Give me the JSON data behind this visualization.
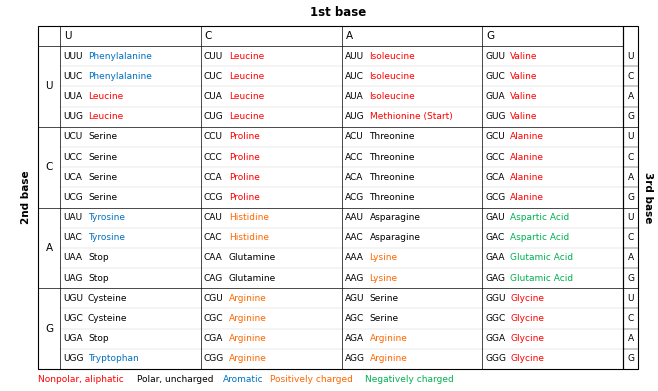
{
  "title": "1st base",
  "side_label": "2nd base",
  "right_label": "3rd base",
  "first_bases": [
    "U",
    "C",
    "A",
    "G"
  ],
  "second_bases": [
    "U",
    "C",
    "A",
    "G"
  ],
  "third_bases": [
    "U",
    "C",
    "A",
    "G"
  ],
  "legend": [
    {
      "text": "Nonpolar, aliphatic",
      "color": "#ff0000"
    },
    {
      "text": "Polar, uncharged",
      "color": "#000000"
    },
    {
      "text": "Aromatic",
      "color": "#0070c0"
    },
    {
      "text": "Positively charged",
      "color": "#ff6600"
    },
    {
      "text": "Negatively charged",
      "color": "#00b050"
    }
  ],
  "table": {
    "UU": [
      {
        "codon": "UUU",
        "aa": "Phenylalanine",
        "color": "#0070c0"
      },
      {
        "codon": "UUC",
        "aa": "Phenylalanine",
        "color": "#0070c0"
      },
      {
        "codon": "UUA",
        "aa": "Leucine",
        "color": "#ff0000"
      },
      {
        "codon": "UUG",
        "aa": "Leucine",
        "color": "#ff0000"
      }
    ],
    "UC": [
      {
        "codon": "UCU",
        "aa": "Serine",
        "color": "#000000"
      },
      {
        "codon": "UCC",
        "aa": "Serine",
        "color": "#000000"
      },
      {
        "codon": "UCA",
        "aa": "Serine",
        "color": "#000000"
      },
      {
        "codon": "UCG",
        "aa": "Serine",
        "color": "#000000"
      }
    ],
    "UA": [
      {
        "codon": "UAU",
        "aa": "Tyrosine",
        "color": "#0070c0"
      },
      {
        "codon": "UAC",
        "aa": "Tyrosine",
        "color": "#0070c0"
      },
      {
        "codon": "UAA",
        "aa": "Stop",
        "color": "#000000"
      },
      {
        "codon": "UAG",
        "aa": "Stop",
        "color": "#000000"
      }
    ],
    "UG": [
      {
        "codon": "UGU",
        "aa": "Cysteine",
        "color": "#000000"
      },
      {
        "codon": "UGC",
        "aa": "Cysteine",
        "color": "#000000"
      },
      {
        "codon": "UGA",
        "aa": "Stop",
        "color": "#000000"
      },
      {
        "codon": "UGG",
        "aa": "Tryptophan",
        "color": "#0070c0"
      }
    ],
    "CU": [
      {
        "codon": "CUU",
        "aa": "Leucine",
        "color": "#ff0000"
      },
      {
        "codon": "CUC",
        "aa": "Leucine",
        "color": "#ff0000"
      },
      {
        "codon": "CUA",
        "aa": "Leucine",
        "color": "#ff0000"
      },
      {
        "codon": "CUG",
        "aa": "Leucine",
        "color": "#ff0000"
      }
    ],
    "CC": [
      {
        "codon": "CCU",
        "aa": "Proline",
        "color": "#ff0000"
      },
      {
        "codon": "CCC",
        "aa": "Proline",
        "color": "#ff0000"
      },
      {
        "codon": "CCA",
        "aa": "Proline",
        "color": "#ff0000"
      },
      {
        "codon": "CCG",
        "aa": "Proline",
        "color": "#ff0000"
      }
    ],
    "CA": [
      {
        "codon": "CAU",
        "aa": "Histidine",
        "color": "#ff6600"
      },
      {
        "codon": "CAC",
        "aa": "Histidine",
        "color": "#ff6600"
      },
      {
        "codon": "CAA",
        "aa": "Glutamine",
        "color": "#000000"
      },
      {
        "codon": "CAG",
        "aa": "Glutamine",
        "color": "#000000"
      }
    ],
    "CG": [
      {
        "codon": "CGU",
        "aa": "Arginine",
        "color": "#ff6600"
      },
      {
        "codon": "CGC",
        "aa": "Arginine",
        "color": "#ff6600"
      },
      {
        "codon": "CGA",
        "aa": "Arginine",
        "color": "#ff6600"
      },
      {
        "codon": "CGG",
        "aa": "Arginine",
        "color": "#ff6600"
      }
    ],
    "AU": [
      {
        "codon": "AUU",
        "aa": "Isoleucine",
        "color": "#ff0000"
      },
      {
        "codon": "AUC",
        "aa": "Isoleucine",
        "color": "#ff0000"
      },
      {
        "codon": "AUA",
        "aa": "Isoleucine",
        "color": "#ff0000"
      },
      {
        "codon": "AUG",
        "aa": "Methionine (Start)",
        "color": "#ff0000"
      }
    ],
    "AC": [
      {
        "codon": "ACU",
        "aa": "Threonine",
        "color": "#000000"
      },
      {
        "codon": "ACC",
        "aa": "Threonine",
        "color": "#000000"
      },
      {
        "codon": "ACA",
        "aa": "Threonine",
        "color": "#000000"
      },
      {
        "codon": "ACG",
        "aa": "Threonine",
        "color": "#000000"
      }
    ],
    "AA": [
      {
        "codon": "AAU",
        "aa": "Asparagine",
        "color": "#000000"
      },
      {
        "codon": "AAC",
        "aa": "Asparagine",
        "color": "#000000"
      },
      {
        "codon": "AAA",
        "aa": "Lysine",
        "color": "#ff6600"
      },
      {
        "codon": "AAG",
        "aa": "Lysine",
        "color": "#ff6600"
      }
    ],
    "AG": [
      {
        "codon": "AGU",
        "aa": "Serine",
        "color": "#000000"
      },
      {
        "codon": "AGC",
        "aa": "Serine",
        "color": "#000000"
      },
      {
        "codon": "AGA",
        "aa": "Arginine",
        "color": "#ff6600"
      },
      {
        "codon": "AGG",
        "aa": "Arginine",
        "color": "#ff6600"
      }
    ],
    "GU": [
      {
        "codon": "GUU",
        "aa": "Valine",
        "color": "#ff0000"
      },
      {
        "codon": "GUC",
        "aa": "Valine",
        "color": "#ff0000"
      },
      {
        "codon": "GUA",
        "aa": "Valine",
        "color": "#ff0000"
      },
      {
        "codon": "GUG",
        "aa": "Valine",
        "color": "#ff0000"
      }
    ],
    "GC": [
      {
        "codon": "GCU",
        "aa": "Alanine",
        "color": "#ff0000"
      },
      {
        "codon": "GCC",
        "aa": "Alanine",
        "color": "#ff0000"
      },
      {
        "codon": "GCA",
        "aa": "Alanine",
        "color": "#ff0000"
      },
      {
        "codon": "GCG",
        "aa": "Alanine",
        "color": "#ff0000"
      }
    ],
    "GA": [
      {
        "codon": "GAU",
        "aa": "Aspartic Acid",
        "color": "#00b050"
      },
      {
        "codon": "GAC",
        "aa": "Aspartic Acid",
        "color": "#00b050"
      },
      {
        "codon": "GAA",
        "aa": "Glutamic Acid",
        "color": "#00b050"
      },
      {
        "codon": "GAG",
        "aa": "Glutamic Acid",
        "color": "#00b050"
      }
    ],
    "GG": [
      {
        "codon": "GGU",
        "aa": "Glycine",
        "color": "#ff0000"
      },
      {
        "codon": "GGC",
        "aa": "Glycine",
        "color": "#ff0000"
      },
      {
        "codon": "GGA",
        "aa": "Glycine",
        "color": "#ff0000"
      },
      {
        "codon": "GGG",
        "aa": "Glycine",
        "color": "#ff0000"
      }
    ]
  }
}
